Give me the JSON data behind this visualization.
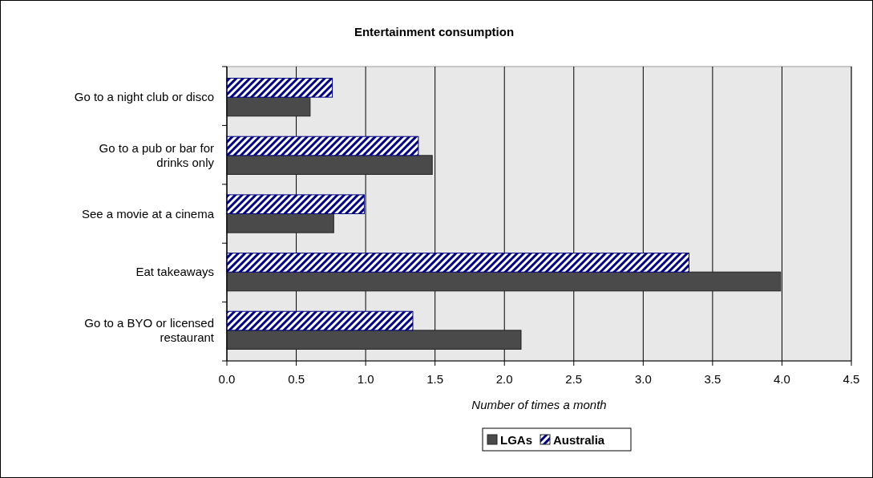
{
  "chart_data": {
    "type": "bar",
    "orientation": "horizontal",
    "title": "Entertainment consumption",
    "xlabel": "Number of times a month",
    "categories": [
      "Go to a night club or disco",
      "Go to a pub or bar for drinks only",
      "See a movie at a cinema",
      "Eat takeaways",
      "Go to a BYO or licensed restaurant"
    ],
    "series": [
      {
        "name": "LGAs",
        "color": "#4a4a4a",
        "values": [
          0.6,
          1.48,
          0.77,
          3.99,
          2.12
        ]
      },
      {
        "name": "Australia",
        "color": "#000080",
        "values": [
          0.76,
          1.38,
          0.99,
          3.33,
          1.34
        ]
      }
    ],
    "xlim": [
      0,
      4.5
    ],
    "xticks": [
      {
        "value": 0,
        "label": "0.0"
      },
      {
        "value": 0.5,
        "label": "0.5"
      },
      {
        "value": 1,
        "label": "1.0"
      },
      {
        "value": 1.5,
        "label": "1.5"
      },
      {
        "value": 2,
        "label": "2.0"
      },
      {
        "value": 2.5,
        "label": "2.5"
      },
      {
        "value": 3,
        "label": "3.0"
      },
      {
        "value": 3.5,
        "label": "3.5"
      },
      {
        "value": 4,
        "label": "4.0"
      },
      {
        "value": 4.5,
        "label": "4.5"
      }
    ],
    "grid": "x",
    "legend": "bottom"
  }
}
